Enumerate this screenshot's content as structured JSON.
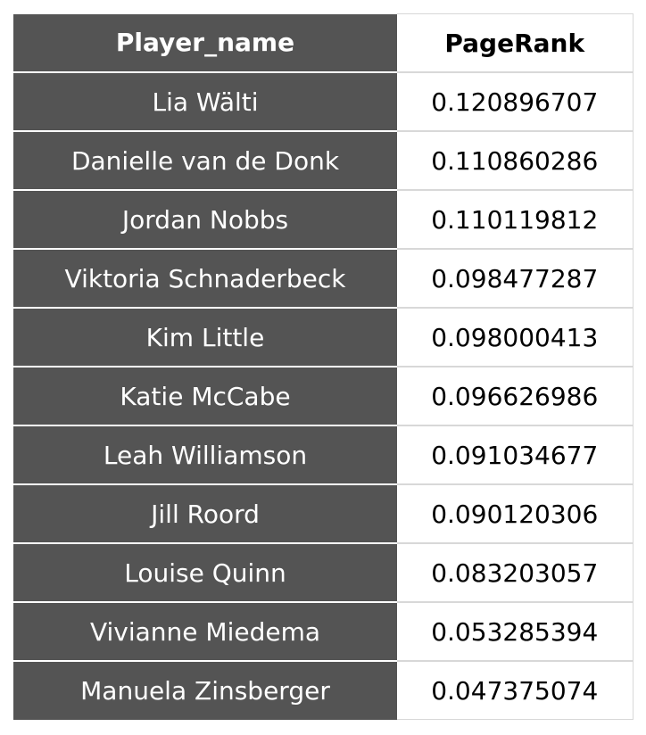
{
  "chart_data": {
    "type": "table",
    "columns": [
      "Player_name",
      "PageRank"
    ],
    "rows": [
      [
        "Lia Wälti",
        "0.120896707"
      ],
      [
        "Danielle van de Donk",
        "0.110860286"
      ],
      [
        "Jordan Nobbs",
        "0.110119812"
      ],
      [
        "Viktoria Schnaderbeck",
        "0.098477287"
      ],
      [
        "Kim Little",
        "0.098000413"
      ],
      [
        "Katie McCabe",
        "0.096626986"
      ],
      [
        "Leah Williamson",
        "0.091034677"
      ],
      [
        "Jill Roord",
        "0.090120306"
      ],
      [
        "Louise Quinn",
        "0.083203057"
      ],
      [
        "Vivianne Miedema",
        "0.053285394"
      ],
      [
        "Manuela Zinsberger",
        "0.047375074"
      ]
    ]
  },
  "colors": {
    "name_column_bg": "#545454",
    "name_column_text": "#ffffff",
    "value_column_bg": "#ffffff",
    "value_column_text": "#000000",
    "grid_line": "#d8d8d8"
  }
}
